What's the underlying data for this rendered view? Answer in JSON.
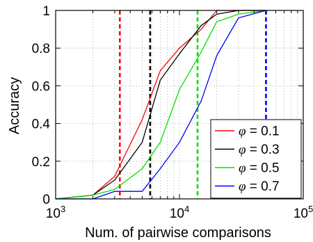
{
  "chart_data": {
    "type": "line",
    "xlabel": "Num. of pairwise comparisons",
    "ylabel": "Accuracy",
    "xscale": "log",
    "xlim": [
      1000,
      100000
    ],
    "ylim": [
      0,
      1
    ],
    "grid": true,
    "legend_position": "bottom-right",
    "x_ticks": [
      {
        "value": 1000,
        "base": "10",
        "exp": "3"
      },
      {
        "value": 10000,
        "base": "10",
        "exp": "4"
      },
      {
        "value": 100000,
        "base": "10",
        "exp": "5"
      }
    ],
    "y_ticks": [
      {
        "value": 0,
        "label": "0"
      },
      {
        "value": 0.2,
        "label": "0.2"
      },
      {
        "value": 0.4,
        "label": "0.4"
      },
      {
        "value": 0.6,
        "label": "0.6"
      },
      {
        "value": 0.8,
        "label": "0.8"
      },
      {
        "value": 1,
        "label": "1"
      }
    ],
    "series": [
      {
        "name": "φ = 0.1",
        "color": "#ff0000",
        "x": [
          1000,
          2000,
          3000,
          5000,
          7000,
          10000,
          15000,
          20000,
          30000,
          50000
        ],
        "y": [
          0,
          0.02,
          0.12,
          0.42,
          0.68,
          0.8,
          0.9,
          1,
          1,
          1
        ]
      },
      {
        "name": "φ = 0.3",
        "color": "#000000",
        "x": [
          1000,
          2000,
          3000,
          5000,
          7000,
          10000,
          15000,
          20000,
          30000,
          50000
        ],
        "y": [
          0,
          0.02,
          0.1,
          0.3,
          0.63,
          0.77,
          0.92,
          0.98,
          1,
          1
        ]
      },
      {
        "name": "φ = 0.5",
        "color": "#00e000",
        "x": [
          1000,
          2000,
          3000,
          5000,
          7000,
          10000,
          15000,
          20000,
          30000,
          50000
        ],
        "y": [
          0,
          0.02,
          0.05,
          0.16,
          0.3,
          0.58,
          0.78,
          0.94,
          0.98,
          1
        ]
      },
      {
        "name": "φ = 0.7",
        "color": "#0000ff",
        "x": [
          1000,
          2000,
          3000,
          5000,
          7000,
          10000,
          15000,
          20000,
          30000,
          50000
        ],
        "y": [
          0,
          0,
          0.04,
          0.04,
          0.16,
          0.3,
          0.52,
          0.76,
          0.96,
          1
        ]
      }
    ],
    "vlines": [
      {
        "x": 3300,
        "color": "#ff0000"
      },
      {
        "x": 5800,
        "color": "#000000"
      },
      {
        "x": 14000,
        "color": "#00e000"
      },
      {
        "x": 50000,
        "color": "#0000ff"
      }
    ],
    "legend": [
      {
        "symbol": "φ",
        "text": " = 0.1",
        "color": "#ff0000"
      },
      {
        "symbol": "φ",
        "text": " = 0.3",
        "color": "#000000"
      },
      {
        "symbol": "φ",
        "text": " = 0.5",
        "color": "#00e000"
      },
      {
        "symbol": "φ",
        "text": " = 0.7",
        "color": "#0000ff"
      }
    ]
  }
}
